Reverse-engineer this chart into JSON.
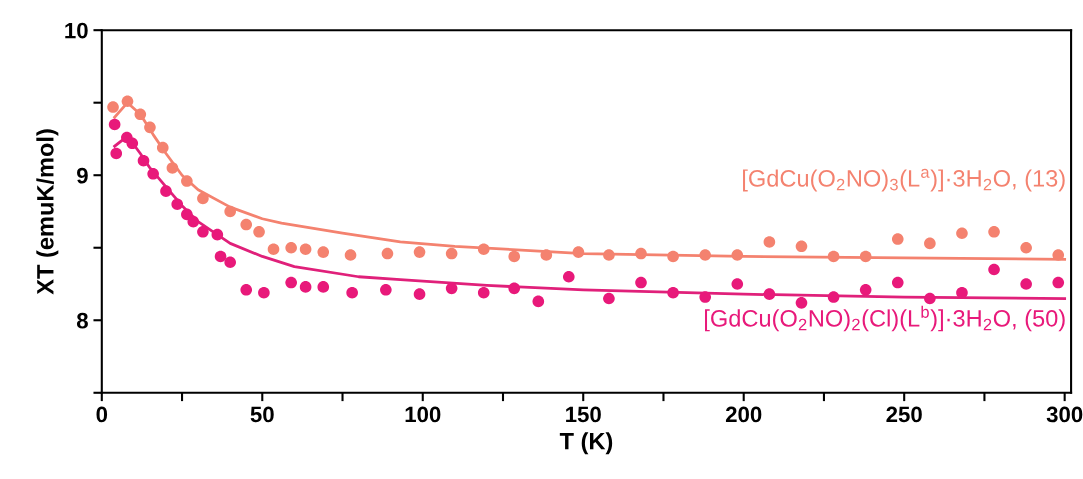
{
  "chart_data": {
    "type": "line",
    "xlabel": "T (K)",
    "ylabel": "XT (emuK/mol)",
    "xlim": [
      0,
      302
    ],
    "ylim": [
      7.5,
      10
    ],
    "xticks": [
      0,
      {
        "value": 25,
        "label": null
      },
      50,
      {
        "value": 75,
        "label": null
      },
      100,
      {
        "value": 125,
        "label": null
      },
      150,
      {
        "value": 175,
        "label": null
      },
      200,
      {
        "value": 225,
        "label": null
      },
      250,
      {
        "value": 275,
        "label": null
      },
      300
    ],
    "yticks": [
      {
        "value": 7.5,
        "label": null
      },
      8,
      {
        "value": 8.5,
        "label": null
      },
      9,
      {
        "value": 9.5,
        "label": null
      },
      10
    ],
    "grid": false,
    "legend": false,
    "series": [
      {
        "name": "[GdCu(O$_{2}$NO)$_{3}$(L$^{a}$)]·3H$_{2}$O, (13)",
        "type": "scatter",
        "marker": "circle",
        "color": "#f4826f",
        "x": [
          3.5,
          8,
          12,
          15,
          19,
          22,
          26.5,
          31.5,
          40,
          45,
          49,
          53.5,
          59,
          63.5,
          69,
          77.5,
          89,
          99,
          109,
          119,
          128.5,
          138.5,
          148.5,
          158,
          168,
          178,
          188,
          198,
          208,
          218,
          228,
          238,
          248,
          258,
          268,
          278,
          288,
          298
        ],
        "values": [
          9.47,
          9.51,
          9.42,
          9.33,
          9.19,
          9.05,
          8.96,
          8.84,
          8.75,
          8.66,
          8.61,
          8.49,
          8.5,
          8.49,
          8.47,
          8.45,
          8.46,
          8.47,
          8.46,
          8.49,
          8.44,
          8.45,
          8.47,
          8.45,
          8.46,
          8.44,
          8.45,
          8.45,
          8.54,
          8.51,
          8.44,
          8.44,
          8.56,
          8.53,
          8.6,
          8.61,
          8.5,
          8.45
        ]
      },
      {
        "name": "[GdCu(O$_{2}$NO)$_{2}$(Cl)(L$^{b}$)]·3H$_{2}$O, (50)",
        "type": "scatter",
        "marker": "circle",
        "color": "#e8197a",
        "x": [
          4,
          4.5,
          7.8,
          9.5,
          13,
          16,
          20,
          23.5,
          26.5,
          28.5,
          31.5,
          36,
          37,
          40,
          45,
          50.5,
          59,
          63.5,
          69,
          78,
          88.5,
          99,
          109,
          119,
          128.5,
          136,
          145.5,
          158,
          168,
          178,
          188,
          198,
          208,
          218,
          228,
          238,
          248,
          258,
          268,
          278,
          288,
          298
        ],
        "values": [
          9.35,
          9.15,
          9.26,
          9.22,
          9.1,
          9.01,
          8.89,
          8.8,
          8.73,
          8.68,
          8.61,
          8.59,
          8.44,
          8.4,
          8.21,
          8.19,
          8.26,
          8.23,
          8.23,
          8.19,
          8.21,
          8.18,
          8.22,
          8.19,
          8.22,
          8.13,
          8.3,
          8.15,
          8.26,
          8.19,
          8.16,
          8.25,
          8.18,
          8.12,
          8.16,
          8.21,
          8.26,
          8.15,
          8.19,
          8.35,
          8.25,
          8.26
        ]
      },
      {
        "color": "#f4826f",
        "x": [
          4,
          8,
          12,
          16,
          20,
          25,
          30,
          40,
          50,
          56,
          75,
          93,
          110,
          150,
          200,
          250,
          300
        ],
        "values": [
          9.4,
          9.5,
          9.42,
          9.28,
          9.15,
          9.0,
          8.9,
          8.78,
          8.7,
          8.67,
          8.6,
          8.54,
          8.51,
          8.46,
          8.44,
          8.43,
          8.42
        ]
      },
      {
        "color": "#e0207a",
        "x": [
          4,
          8,
          12,
          15,
          20,
          25,
          30,
          40,
          50,
          60,
          80,
          93,
          120,
          150,
          200,
          250,
          300
        ],
        "values": [
          9.2,
          9.27,
          9.15,
          9.05,
          8.92,
          8.79,
          8.68,
          8.53,
          8.44,
          8.37,
          8.3,
          8.28,
          8.24,
          8.21,
          8.18,
          8.16,
          8.15
        ]
      }
    ]
  }
}
